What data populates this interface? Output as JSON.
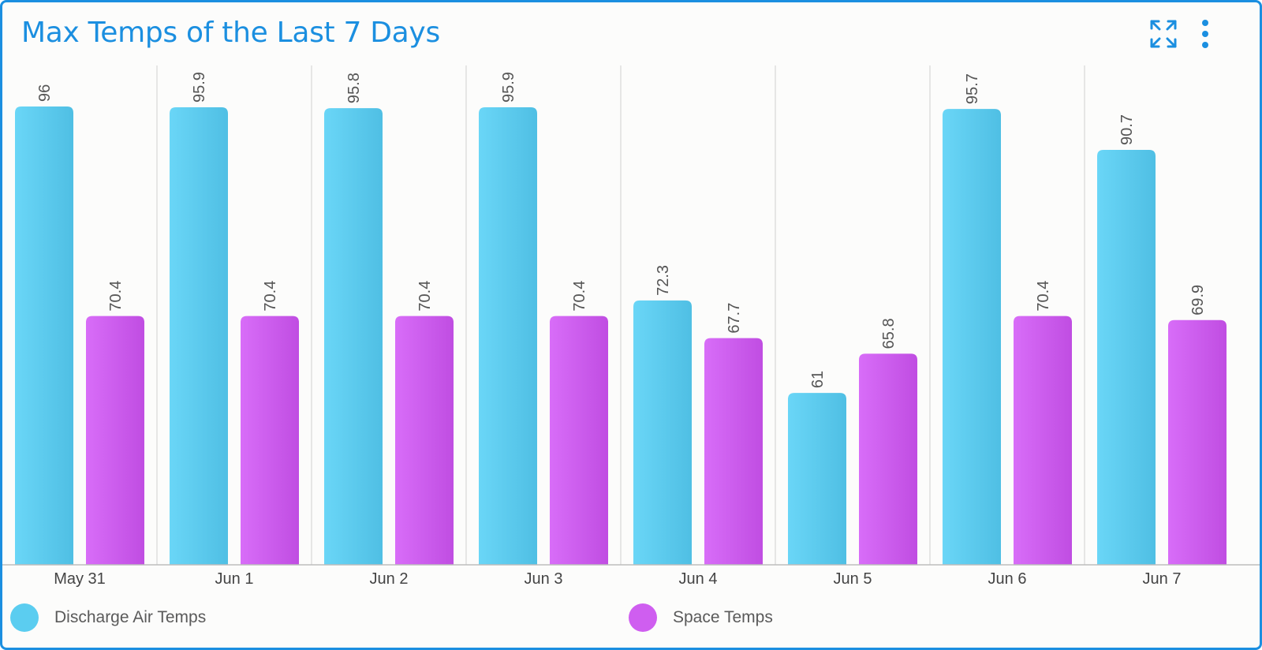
{
  "header": {
    "title": "Max Temps of the Last 7 Days",
    "expand_icon": "expand-icon",
    "menu_icon": "more-vertical-icon"
  },
  "colors": {
    "accent": "#1b8fe0",
    "discharge": "#5bcdf0",
    "space": "#cf5ef0"
  },
  "chart_data": {
    "type": "bar",
    "title": "Max Temps of the Last 7 Days",
    "categories": [
      "May 31",
      "Jun 1",
      "Jun 2",
      "Jun 3",
      "Jun 4",
      "Jun 5",
      "Jun 6",
      "Jun 7"
    ],
    "series": [
      {
        "name": "Discharge Air Temps",
        "values": [
          96,
          95.9,
          95.8,
          95.9,
          72.3,
          61,
          95.7,
          90.7
        ]
      },
      {
        "name": "Space Temps",
        "values": [
          70.4,
          70.4,
          70.4,
          70.4,
          67.7,
          65.8,
          70.4,
          69.9
        ]
      }
    ],
    "ylim": [
      40,
      96
    ],
    "xlabel": "",
    "ylabel": "",
    "grid": "vertical separators",
    "data_labels": true,
    "legend_position": "bottom"
  }
}
